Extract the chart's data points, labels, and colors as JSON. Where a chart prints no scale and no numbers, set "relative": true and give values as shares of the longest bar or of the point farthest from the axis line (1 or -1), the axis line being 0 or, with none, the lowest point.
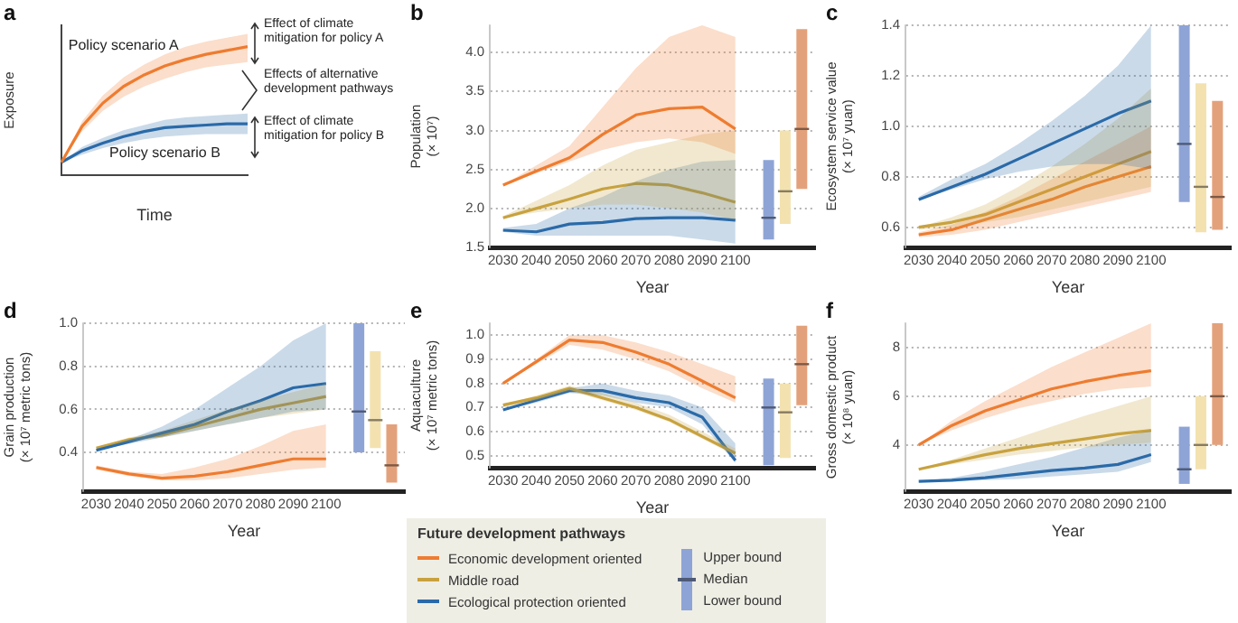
{
  "chart_data": [
    {
      "type": "line",
      "title": "a",
      "xlabel": "Time",
      "ylabel": "Exposure",
      "relative": true,
      "categories": [
        null,
        null,
        null,
        null,
        null,
        null,
        null,
        null,
        null,
        null
      ],
      "series": [
        {
          "name": "Policy scenario A",
          "color": "#ee7d31",
          "values": [
            0.1,
            0.38,
            0.56,
            0.69,
            0.78,
            0.85,
            0.9,
            0.94,
            0.97,
            1.0
          ],
          "lower": [
            0.1,
            0.34,
            0.5,
            0.61,
            0.69,
            0.75,
            0.8,
            0.84,
            0.86,
            0.88
          ],
          "upper": [
            0.1,
            0.42,
            0.62,
            0.76,
            0.86,
            0.94,
            1.0,
            1.04,
            1.07,
            1.1
          ]
        },
        {
          "name": "Policy scenario B",
          "color": "#2a6aa9",
          "values": [
            0.1,
            0.19,
            0.25,
            0.3,
            0.34,
            0.37,
            0.38,
            0.39,
            0.4,
            0.4
          ],
          "lower": [
            0.1,
            0.16,
            0.21,
            0.25,
            0.28,
            0.3,
            0.31,
            0.32,
            0.32,
            0.32
          ],
          "upper": [
            0.1,
            0.22,
            0.29,
            0.35,
            0.39,
            0.43,
            0.45,
            0.46,
            0.47,
            0.48
          ]
        }
      ],
      "annotations": [
        "Effect of climate mitigation for policy A",
        "Effects of alternative development pathways",
        "Effect of climate mitigation for policy B"
      ],
      "legend": false,
      "grid": false,
      "marker": "none",
      "line_style": "solid"
    },
    {
      "type": "line",
      "title": "b",
      "xlabel": "Year",
      "ylabel": "Population (× 10⁷)",
      "x": [
        2030,
        2040,
        2050,
        2060,
        2070,
        2080,
        2090,
        2100
      ],
      "xlim": [
        2026,
        2124
      ],
      "xticks": [
        2030,
        2040,
        2050,
        2060,
        2070,
        2080,
        2090,
        2100
      ],
      "ylim": [
        1.5,
        4.35
      ],
      "yticks": [
        1.5,
        {
          "value": 2,
          "label": "2.0"
        },
        2.5,
        {
          "value": 3,
          "label": "3.0"
        },
        3.5,
        {
          "value": 4,
          "label": "4.0"
        }
      ],
      "series": [
        {
          "color": "#ee7d31",
          "values": [
            2.3,
            2.48,
            2.65,
            2.95,
            3.2,
            3.28,
            3.3,
            3.02
          ],
          "lower": [
            2.3,
            2.45,
            2.6,
            2.75,
            2.85,
            2.9,
            2.85,
            2.7
          ],
          "upper": [
            2.3,
            2.55,
            2.8,
            3.3,
            3.8,
            4.2,
            4.35,
            4.2
          ]
        },
        {
          "color": "#c8a23f",
          "values": [
            1.88,
            2.0,
            2.12,
            2.25,
            2.32,
            2.3,
            2.2,
            2.08
          ],
          "lower": [
            1.88,
            1.95,
            2.0,
            2.05,
            2.05,
            2.0,
            1.95,
            1.85
          ],
          "upper": [
            1.9,
            2.1,
            2.3,
            2.55,
            2.75,
            2.85,
            2.95,
            3.0
          ]
        },
        {
          "color": "#2a6aa9",
          "values": [
            1.72,
            1.7,
            1.8,
            1.82,
            1.87,
            1.88,
            1.88,
            1.85
          ],
          "lower": [
            1.7,
            1.65,
            1.65,
            1.65,
            1.65,
            1.65,
            1.6,
            1.55
          ],
          "upper": [
            1.75,
            1.8,
            2.0,
            2.15,
            2.35,
            2.5,
            2.6,
            2.62
          ]
        },
        {
          "type": "box",
          "color": "#8ea4d6",
          "x": [
            2110
          ],
          "boxes": [
            {
              "low": 1.6,
              "q1": 1.6,
              "median": 1.88,
              "q3": 2.62,
              "high": 2.62
            }
          ]
        },
        {
          "type": "box",
          "color": "#f3e2b0",
          "x": [
            2115
          ],
          "boxes": [
            {
              "low": 1.8,
              "q1": 1.8,
              "median": 2.22,
              "q3": 3.0,
              "high": 3.0
            }
          ]
        },
        {
          "type": "box",
          "color": "#e3a17b",
          "x": [
            2120
          ],
          "boxes": [
            {
              "low": 2.25,
              "q1": 2.25,
              "median": 3.02,
              "q3": 4.3,
              "high": 4.3
            }
          ]
        }
      ],
      "legend": false,
      "grid": "y",
      "marker": "none",
      "line_style": "solid"
    },
    {
      "type": "line",
      "title": "c",
      "xlabel": "Year",
      "ylabel": "Ecosystem service value (× 10⁷ yuan)",
      "x": [
        2030,
        2040,
        2050,
        2060,
        2070,
        2080,
        2090,
        2100
      ],
      "xlim": [
        2026,
        2124
      ],
      "xticks": [
        2030,
        2040,
        2050,
        2060,
        2070,
        2080,
        2090,
        2100
      ],
      "ylim": [
        0.52,
        1.4
      ],
      "yticks": [
        0.6,
        0.8,
        {
          "value": 1,
          "label": "1.0"
        },
        1.2,
        1.4
      ],
      "series": [
        {
          "color": "#2a6aa9",
          "values": [
            0.71,
            0.76,
            0.81,
            0.87,
            0.93,
            0.99,
            1.05,
            1.1
          ],
          "lower": [
            0.71,
            0.75,
            0.79,
            0.82,
            0.84,
            0.85,
            0.85,
            0.83
          ],
          "upper": [
            0.72,
            0.79,
            0.85,
            0.93,
            1.02,
            1.12,
            1.24,
            1.4
          ]
        },
        {
          "color": "#c8a23f",
          "values": [
            0.6,
            0.62,
            0.65,
            0.7,
            0.75,
            0.8,
            0.85,
            0.9
          ],
          "lower": [
            0.59,
            0.6,
            0.62,
            0.64,
            0.67,
            0.7,
            0.73,
            0.76
          ],
          "upper": [
            0.6,
            0.64,
            0.69,
            0.76,
            0.84,
            0.93,
            1.03,
            1.15
          ]
        },
        {
          "color": "#ee7d31",
          "values": [
            0.57,
            0.59,
            0.63,
            0.67,
            0.71,
            0.76,
            0.8,
            0.84
          ],
          "lower": [
            0.56,
            0.57,
            0.59,
            0.62,
            0.65,
            0.68,
            0.71,
            0.74
          ],
          "upper": [
            0.58,
            0.61,
            0.66,
            0.72,
            0.79,
            0.86,
            0.93,
            1.0
          ]
        },
        {
          "type": "box",
          "color": "#8ea4d6",
          "x": [
            2110
          ],
          "boxes": [
            {
              "low": 0.7,
              "q1": 0.7,
              "median": 0.93,
              "q3": 1.4,
              "high": 1.4
            }
          ]
        },
        {
          "type": "box",
          "color": "#f3e2b0",
          "x": [
            2115
          ],
          "boxes": [
            {
              "low": 0.58,
              "q1": 0.58,
              "median": 0.76,
              "q3": 1.17,
              "high": 1.17
            }
          ]
        },
        {
          "type": "box",
          "color": "#e3a17b",
          "x": [
            2120
          ],
          "boxes": [
            {
              "low": 0.59,
              "q1": 0.59,
              "median": 0.72,
              "q3": 1.1,
              "high": 1.1
            }
          ]
        }
      ],
      "legend": false,
      "grid": "y",
      "marker": "none",
      "line_style": "solid"
    },
    {
      "type": "line",
      "title": "d",
      "xlabel": "Year",
      "ylabel": "Grain production (× 10⁷ metric tons)",
      "x": [
        2030,
        2040,
        2050,
        2060,
        2070,
        2080,
        2090,
        2100
      ],
      "xlim": [
        2026,
        2124
      ],
      "xticks": [
        2030,
        2040,
        2050,
        2060,
        2070,
        2080,
        2090,
        2100
      ],
      "ylim": [
        0.22,
        1.0
      ],
      "yticks": [
        0.4,
        0.6,
        0.8,
        {
          "value": 1,
          "label": "1.0"
        }
      ],
      "series": [
        {
          "color": "#2a6aa9",
          "values": [
            0.41,
            0.45,
            0.49,
            0.53,
            0.59,
            0.64,
            0.7,
            0.72
          ],
          "lower": [
            0.41,
            0.44,
            0.47,
            0.5,
            0.53,
            0.56,
            0.59,
            0.6
          ],
          "upper": [
            0.41,
            0.46,
            0.52,
            0.6,
            0.7,
            0.8,
            0.92,
            1.0
          ]
        },
        {
          "color": "#c8a23f",
          "values": [
            0.42,
            0.46,
            0.48,
            0.52,
            0.56,
            0.6,
            0.63,
            0.66
          ],
          "lower": [
            0.42,
            0.45,
            0.47,
            0.5,
            0.53,
            0.56,
            0.58,
            0.6
          ],
          "upper": [
            0.42,
            0.47,
            0.5,
            0.55,
            0.6,
            0.64,
            0.68,
            0.72
          ]
        },
        {
          "color": "#ee7d31",
          "values": [
            0.33,
            0.3,
            0.28,
            0.29,
            0.31,
            0.34,
            0.37,
            0.37
          ],
          "lower": [
            0.32,
            0.29,
            0.27,
            0.27,
            0.28,
            0.3,
            0.32,
            0.33
          ],
          "upper": [
            0.34,
            0.31,
            0.3,
            0.33,
            0.37,
            0.43,
            0.5,
            0.53
          ]
        },
        {
          "type": "box",
          "color": "#8ea4d6",
          "x": [
            2110
          ],
          "boxes": [
            {
              "low": 0.4,
              "q1": 0.4,
              "median": 0.59,
              "q3": 1.0,
              "high": 1.0
            }
          ]
        },
        {
          "type": "box",
          "color": "#f3e2b0",
          "x": [
            2115
          ],
          "boxes": [
            {
              "low": 0.42,
              "q1": 0.42,
              "median": 0.55,
              "q3": 0.87,
              "high": 0.87
            }
          ]
        },
        {
          "type": "box",
          "color": "#e3a17b",
          "x": [
            2120
          ],
          "boxes": [
            {
              "low": 0.26,
              "q1": 0.26,
              "median": 0.34,
              "q3": 0.53,
              "high": 0.53
            }
          ]
        }
      ],
      "legend": false,
      "grid": "y",
      "marker": "none",
      "line_style": "solid"
    },
    {
      "type": "line",
      "title": "e",
      "xlabel": "Year",
      "ylabel": "Aquaculture (× 10⁷ metric tons)",
      "x": [
        2030,
        2040,
        2050,
        2060,
        2070,
        2080,
        2090,
        2100
      ],
      "xlim": [
        2026,
        2124
      ],
      "xticks": [
        2030,
        2040,
        2050,
        2060,
        2070,
        2080,
        2090,
        2100
      ],
      "ylim": [
        0.45,
        1.05
      ],
      "yticks": [
        0.5,
        0.6,
        0.7,
        0.8,
        0.9,
        {
          "value": 1,
          "label": "1.0"
        }
      ],
      "series": [
        {
          "color": "#ee7d31",
          "values": [
            0.8,
            0.89,
            0.98,
            0.97,
            0.93,
            0.88,
            0.81,
            0.74
          ],
          "lower": [
            0.8,
            0.88,
            0.96,
            0.94,
            0.9,
            0.85,
            0.78,
            0.72
          ],
          "upper": [
            0.8,
            0.9,
            1.0,
            1.0,
            0.97,
            0.93,
            0.88,
            0.83
          ]
        },
        {
          "color": "#c8a23f",
          "values": [
            0.71,
            0.74,
            0.78,
            0.74,
            0.7,
            0.65,
            0.58,
            0.51
          ],
          "lower": [
            0.7,
            0.73,
            0.77,
            0.73,
            0.69,
            0.64,
            0.57,
            0.5
          ],
          "upper": [
            0.71,
            0.75,
            0.79,
            0.76,
            0.72,
            0.67,
            0.6,
            0.53
          ]
        },
        {
          "color": "#2a6aa9",
          "values": [
            0.69,
            0.73,
            0.77,
            0.77,
            0.74,
            0.72,
            0.66,
            0.48
          ],
          "lower": [
            0.69,
            0.72,
            0.76,
            0.75,
            0.72,
            0.7,
            0.63,
            0.47
          ],
          "upper": [
            0.69,
            0.74,
            0.78,
            0.8,
            0.77,
            0.75,
            0.7,
            0.55
          ]
        },
        {
          "type": "box",
          "color": "#8ea4d6",
          "x": [
            2110
          ],
          "boxes": [
            {
              "low": 0.46,
              "q1": 0.46,
              "median": 0.7,
              "q3": 0.82,
              "high": 0.82
            }
          ]
        },
        {
          "type": "box",
          "color": "#f3e2b0",
          "x": [
            2115
          ],
          "boxes": [
            {
              "low": 0.49,
              "q1": 0.49,
              "median": 0.68,
              "q3": 0.8,
              "high": 0.8
            }
          ]
        },
        {
          "type": "box",
          "color": "#e3a17b",
          "x": [
            2120
          ],
          "boxes": [
            {
              "low": 0.71,
              "q1": 0.71,
              "median": 0.88,
              "q3": 1.04,
              "high": 1.04
            }
          ]
        }
      ],
      "legend": false,
      "grid": "y",
      "marker": "none",
      "line_style": "solid"
    },
    {
      "type": "line",
      "title": "f",
      "xlabel": "Year",
      "ylabel": "Gross domestic product (× 10⁸ yuan)",
      "x": [
        2030,
        2040,
        2050,
        2060,
        2070,
        2080,
        2090,
        2100
      ],
      "xlim": [
        2026,
        2124
      ],
      "xticks": [
        2030,
        2040,
        2050,
        2060,
        2070,
        2080,
        2090,
        2100
      ],
      "ylim": [
        2.1,
        9.0
      ],
      "yticks": [
        4,
        6,
        8
      ],
      "series": [
        {
          "color": "#ee7d31",
          "values": [
            4.0,
            4.8,
            5.4,
            5.85,
            6.3,
            6.6,
            6.85,
            7.05
          ],
          "lower": [
            4.0,
            4.6,
            5.1,
            5.5,
            5.8,
            6.1,
            6.3,
            6.4
          ],
          "upper": [
            4.0,
            5.0,
            5.8,
            6.5,
            7.2,
            7.8,
            8.4,
            9.0
          ]
        },
        {
          "color": "#c8a23f",
          "values": [
            3.0,
            3.3,
            3.6,
            3.85,
            4.05,
            4.25,
            4.45,
            4.6
          ],
          "lower": [
            3.0,
            3.2,
            3.4,
            3.6,
            3.75,
            3.9,
            4.0,
            4.1
          ],
          "upper": [
            3.0,
            3.4,
            3.85,
            4.3,
            4.75,
            5.2,
            5.6,
            6.0
          ]
        },
        {
          "color": "#2a6aa9",
          "values": [
            2.5,
            2.55,
            2.65,
            2.8,
            2.95,
            3.05,
            3.2,
            3.6
          ],
          "lower": [
            2.5,
            2.5,
            2.55,
            2.6,
            2.7,
            2.8,
            2.9,
            3.3
          ],
          "upper": [
            2.5,
            2.65,
            2.9,
            3.2,
            3.5,
            3.9,
            4.3,
            4.6
          ]
        },
        {
          "type": "box",
          "color": "#8ea4d6",
          "x": [
            2110
          ],
          "boxes": [
            {
              "low": 2.4,
              "q1": 2.4,
              "median": 3.0,
              "q3": 4.75,
              "high": 4.75
            }
          ]
        },
        {
          "type": "box",
          "color": "#f3e2b0",
          "x": [
            2115
          ],
          "boxes": [
            {
              "low": 3.0,
              "q1": 3.0,
              "median": 4.0,
              "q3": 6.0,
              "high": 6.0
            }
          ]
        },
        {
          "type": "box",
          "color": "#e3a17b",
          "x": [
            2120
          ],
          "boxes": [
            {
              "low": 4.0,
              "q1": 4.0,
              "median": 6.0,
              "q3": 9.0,
              "high": 9.0
            }
          ]
        }
      ],
      "legend": false,
      "grid": "y",
      "marker": "none",
      "line_style": "solid"
    },
    {
      "type": "other",
      "title": "Future development pathways",
      "annotations": [
        "Economic development oriented",
        "Middle road",
        "Ecological protection oriented",
        "Upper bound",
        "Median",
        "Lower bound"
      ],
      "colors": [
        "#ee7d31",
        "#c8a23f",
        "#2a6aa9",
        "#8ea4d6"
      ]
    }
  ]
}
